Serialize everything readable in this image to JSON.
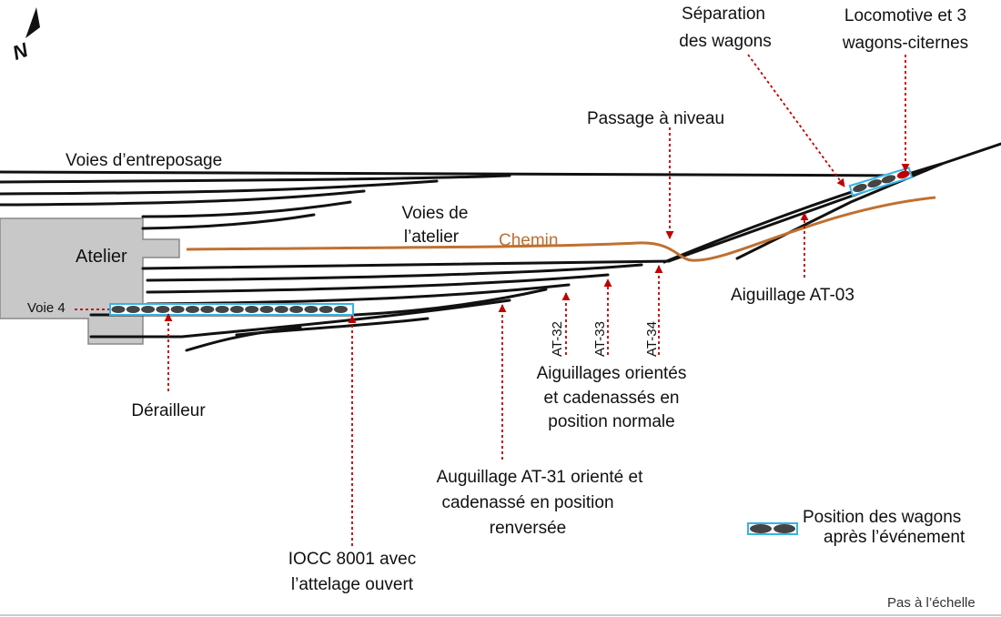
{
  "north": "N",
  "storage_tracks": "Voies d’entreposage",
  "shop_tracks": [
    "Voies de",
    "l’atelier"
  ],
  "workshop": "Atelier",
  "track_4": "Voie 4",
  "road": "Chemin",
  "level_crossing": "Passage à niveau",
  "separation": [
    "Séparation",
    "des wagons"
  ],
  "locomotive": [
    "Locomotive et 3",
    "wagons-citernes"
  ],
  "switch_at03": "Aiguillage AT-03",
  "switch_ids": [
    "AT-32",
    "AT-33",
    "AT-34"
  ],
  "switches_normal": [
    "Aiguillages orientés",
    "et cadenassés en",
    "position normale"
  ],
  "derail": "Dérailleur",
  "switch_at31": [
    "Auguillage AT-31 orienté et",
    "cadenassé en position",
    "renversée"
  ],
  "iocc": [
    "IOCC 8001 avec",
    "l’attelage ouvert"
  ],
  "legend": [
    "Position des wagons",
    "après l’événement"
  ],
  "scale_note": "Pas à l’échelle"
}
